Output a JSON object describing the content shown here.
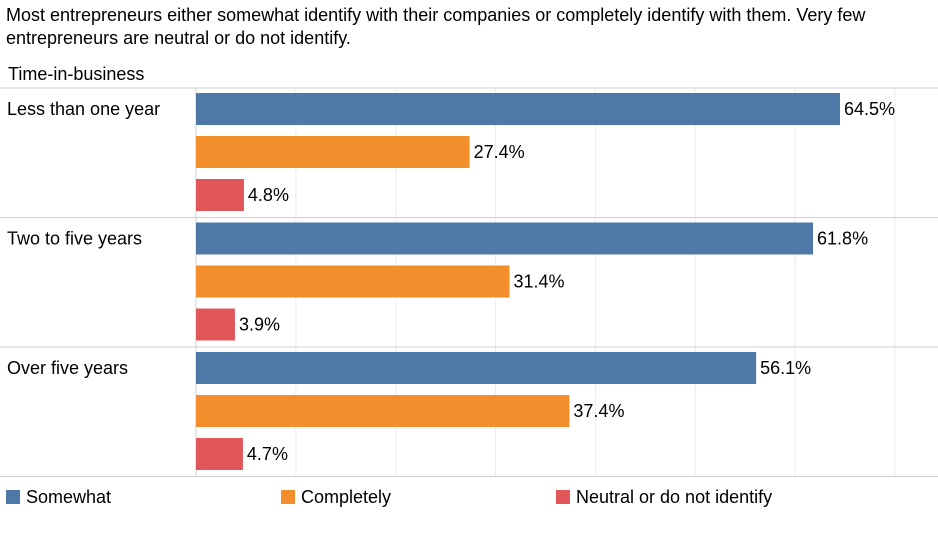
{
  "chart_data": {
    "type": "bar",
    "orientation": "horizontal",
    "title": "Most entrepreneurs either somewhat identify with their companies or completely identify with them. Very few entrepreneurs are neutral or do not identify.",
    "row_header": "Time-in-business",
    "categories": [
      "Less than one year",
      "Two to five years",
      "Over five years"
    ],
    "series": [
      {
        "name": "Somewhat",
        "values": [
          64.5,
          61.8,
          56.1
        ],
        "labels": [
          "64.5%",
          "61.8%",
          "56.1%"
        ],
        "color": "#4e79a7"
      },
      {
        "name": "Completely",
        "values": [
          27.4,
          31.4,
          37.4
        ],
        "labels": [
          "27.4%",
          "31.4%",
          "37.4%"
        ],
        "color": "#f28e2b"
      },
      {
        "name": "Neutral or do not identify",
        "values": [
          4.8,
          3.9,
          4.7
        ],
        "labels": [
          "4.8%",
          "3.9%",
          "4.7%"
        ],
        "color": "#e15759"
      }
    ],
    "xlim": [
      0,
      70
    ],
    "unit": "%",
    "grid": true,
    "legend_position": "bottom"
  }
}
